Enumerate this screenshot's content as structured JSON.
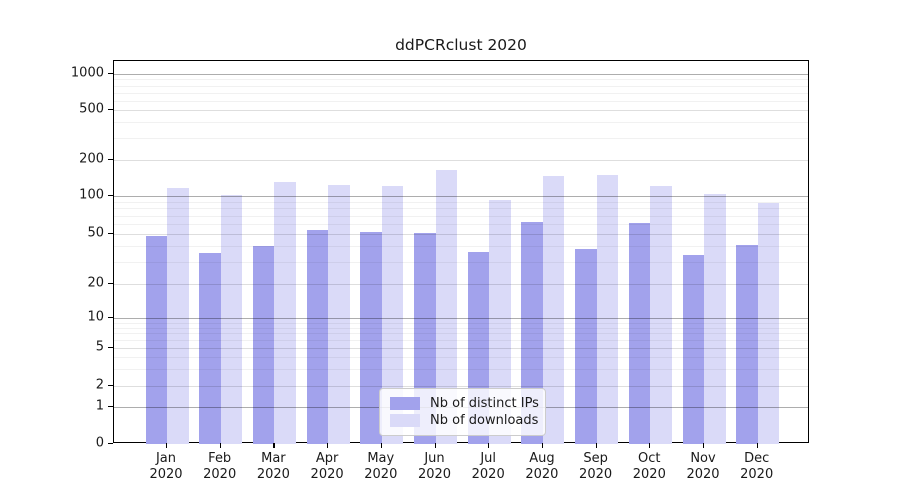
{
  "chart_data": {
    "type": "bar",
    "title": "ddPCRclust 2020",
    "categories": [
      "Jan",
      "Feb",
      "Mar",
      "Apr",
      "May",
      "Jun",
      "Jul",
      "Aug",
      "Sep",
      "Oct",
      "Nov",
      "Dec"
    ],
    "category_year": "2020",
    "series": [
      {
        "name": "Nb of distinct IPs",
        "color": "#a2a2ec",
        "values": [
          48,
          35,
          40,
          54,
          52,
          51,
          36,
          62,
          38,
          61,
          34,
          41
        ]
      },
      {
        "name": "Nb of downloads",
        "color": "#dadaf8",
        "values": [
          117,
          102,
          130,
          124,
          121,
          165,
          93,
          147,
          150,
          121,
          104,
          88
        ]
      }
    ],
    "y_axis": {
      "scale": "symlog",
      "ticks": [
        0,
        1,
        2,
        5,
        10,
        20,
        50,
        100,
        200,
        500,
        1000
      ],
      "range": [
        0,
        1000
      ],
      "major_emphasis_ticks": [
        1,
        10,
        100,
        1000
      ]
    },
    "x_axis": {
      "label_line2": "2020"
    },
    "legend": {
      "position": "lower-center",
      "entries": [
        "Nb of distinct IPs",
        "Nb of downloads"
      ]
    },
    "grid": "on (horizontal, minor + major)"
  }
}
